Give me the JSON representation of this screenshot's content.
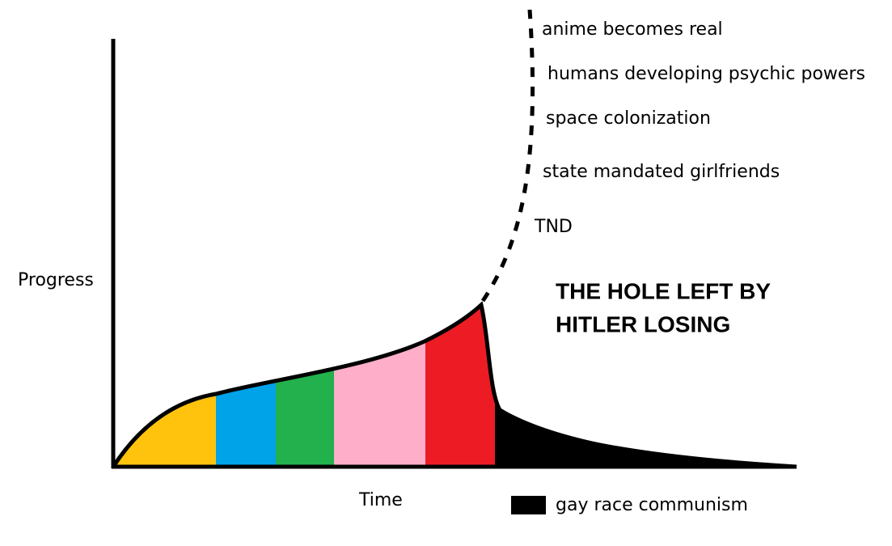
{
  "axes": {
    "y_label": "Progress",
    "x_label": "Time"
  },
  "annotations": [
    "anime becomes real",
    "humans developing psychic powers",
    "space colonization",
    "state mandated girlfriends",
    "TND"
  ],
  "title_lines": [
    "THE HOLE LEFT BY",
    "HITLER LOSING"
  ],
  "legend": {
    "label": "gay race communism"
  }
}
